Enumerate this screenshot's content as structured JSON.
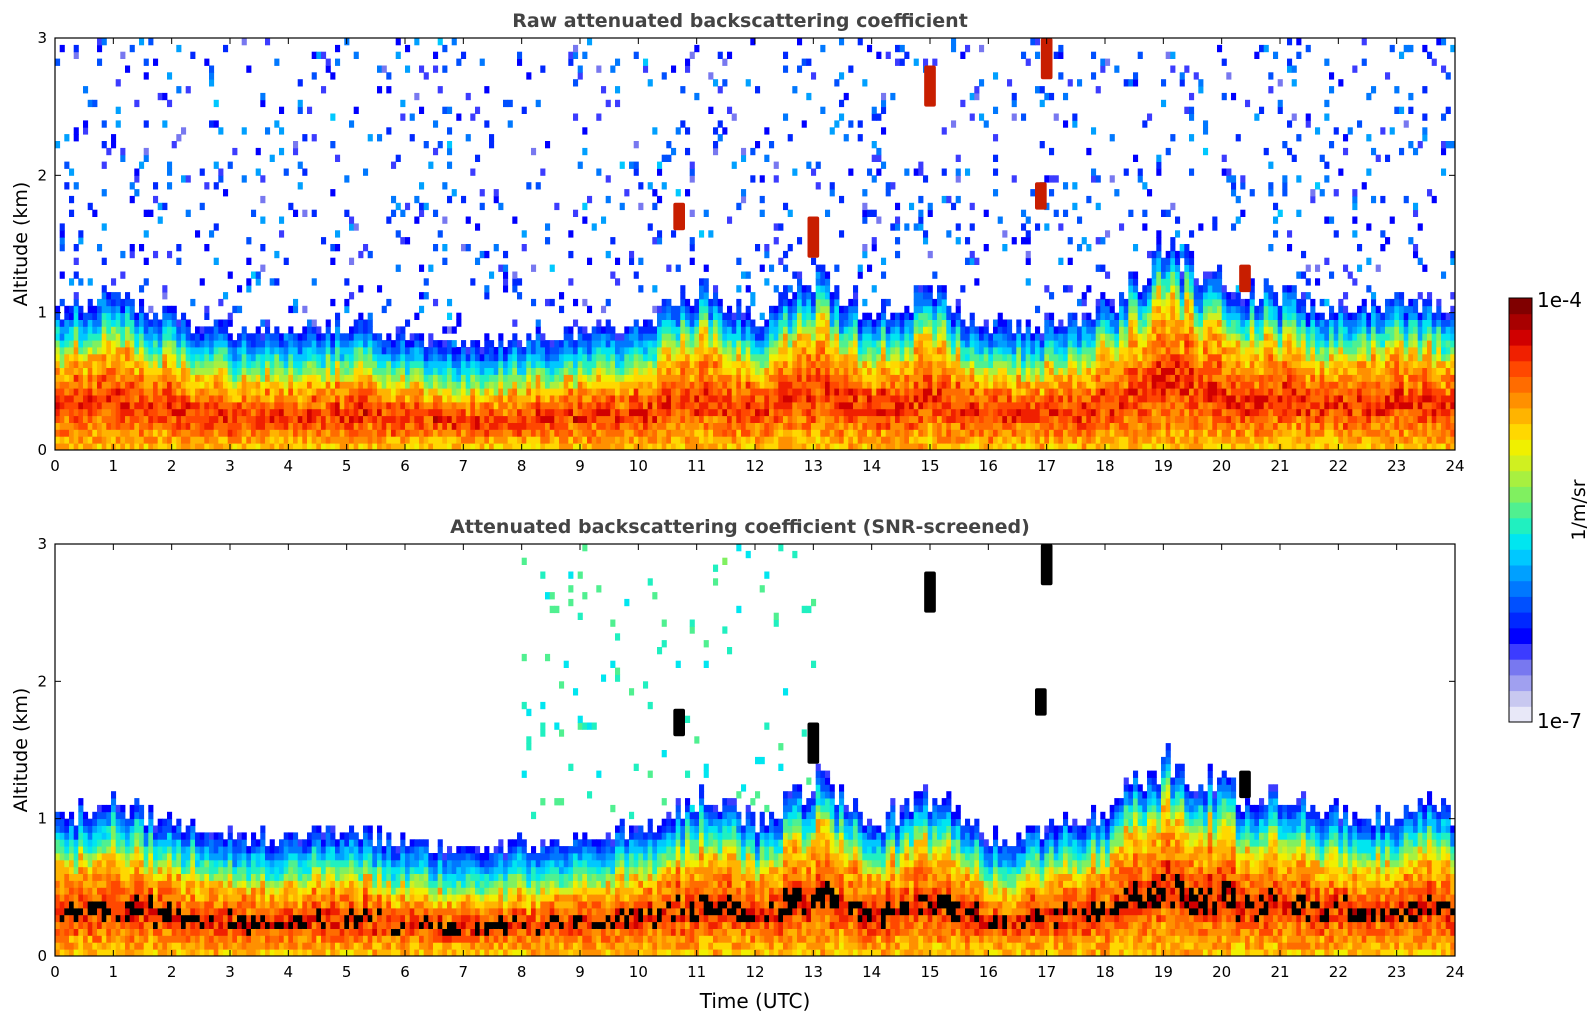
{
  "colorbar": {
    "max_label": "1e-4",
    "min_label": "1e-7",
    "unit_label": "1/m/sr",
    "colors": [
      "#e8e8f8",
      "#c8c8f0",
      "#a0a0f0",
      "#7878f0",
      "#3c3cff",
      "#0000ff",
      "#0028ff",
      "#0050ff",
      "#0078ff",
      "#00a0ff",
      "#00c8ff",
      "#00e6f0",
      "#20f0c0",
      "#50f090",
      "#80f060",
      "#a8f040",
      "#d0f020",
      "#f0f000",
      "#ffd800",
      "#ffb400",
      "#ff9000",
      "#ff6c00",
      "#ff4800",
      "#f02000",
      "#d00000",
      "#a80000",
      "#800000"
    ]
  },
  "chart_data": [
    {
      "type": "heatmap",
      "title": "Raw attenuated backscattering coefficient",
      "xlabel": "",
      "ylabel": "Altitude (km)",
      "xlim": [
        0,
        24
      ],
      "ylim": [
        0,
        3
      ],
      "xticks": [
        "0",
        "1",
        "2",
        "3",
        "4",
        "5",
        "6",
        "7",
        "8",
        "9",
        "10",
        "11",
        "12",
        "13",
        "14",
        "15",
        "16",
        "17",
        "18",
        "19",
        "20",
        "21",
        "22",
        "23",
        "24"
      ],
      "yticks": [
        "0",
        "1",
        "2",
        "3"
      ],
      "colorscale": "log",
      "clim": [
        1e-07,
        0.0001
      ],
      "screened": false,
      "boundary_layer_top_km": [
        {
          "t": 0,
          "z": 0.65
        },
        {
          "t": 1,
          "z": 0.75
        },
        {
          "t": 2,
          "z": 0.6
        },
        {
          "t": 3,
          "z": 0.5
        },
        {
          "t": 4,
          "z": 0.5
        },
        {
          "t": 5,
          "z": 0.55
        },
        {
          "t": 6,
          "z": 0.45
        },
        {
          "t": 7,
          "z": 0.4
        },
        {
          "t": 8,
          "z": 0.45
        },
        {
          "t": 9,
          "z": 0.5
        },
        {
          "t": 10,
          "z": 0.55
        },
        {
          "t": 11,
          "z": 0.8
        },
        {
          "t": 12,
          "z": 0.6
        },
        {
          "t": 13,
          "z": 0.9
        },
        {
          "t": 14,
          "z": 0.6
        },
        {
          "t": 15,
          "z": 0.8
        },
        {
          "t": 16,
          "z": 0.5
        },
        {
          "t": 17,
          "z": 0.55
        },
        {
          "t": 18,
          "z": 0.7
        },
        {
          "t": 19,
          "z": 1.05
        },
        {
          "t": 20,
          "z": 0.85
        },
        {
          "t": 21,
          "z": 0.75
        },
        {
          "t": 22,
          "z": 0.65
        },
        {
          "t": 23,
          "z": 0.7
        },
        {
          "t": 24,
          "z": 0.7
        }
      ],
      "cloud_features": [
        {
          "t_start": 16.9,
          "t_end": 17.1,
          "z_start": 2.7,
          "z_end": 3.0
        },
        {
          "t_start": 16.8,
          "t_end": 17.0,
          "z_start": 1.75,
          "z_end": 1.95
        },
        {
          "t_start": 14.9,
          "t_end": 15.1,
          "z_start": 2.5,
          "z_end": 2.8
        },
        {
          "t_start": 10.6,
          "t_end": 10.8,
          "z_start": 1.6,
          "z_end": 1.8
        },
        {
          "t_start": 12.9,
          "t_end": 13.1,
          "z_start": 1.4,
          "z_end": 1.7
        },
        {
          "t_start": 20.3,
          "t_end": 20.5,
          "z_start": 1.15,
          "z_end": 1.35
        }
      ]
    },
    {
      "type": "heatmap",
      "title": "Attenuated backscattering coefficient (SNR-screened)",
      "xlabel": "Time (UTC)",
      "ylabel": "Altitude (km)",
      "xlim": [
        0,
        24
      ],
      "ylim": [
        0,
        3
      ],
      "xticks": [
        "0",
        "1",
        "2",
        "3",
        "4",
        "5",
        "6",
        "7",
        "8",
        "9",
        "10",
        "11",
        "12",
        "13",
        "14",
        "15",
        "16",
        "17",
        "18",
        "19",
        "20",
        "21",
        "22",
        "23",
        "24"
      ],
      "yticks": [
        "0",
        "1",
        "2",
        "3"
      ],
      "colorscale": "log",
      "clim": [
        1e-07,
        0.0001
      ],
      "screened": true,
      "boundary_layer_top_km": [
        {
          "t": 0,
          "z": 0.65
        },
        {
          "t": 1,
          "z": 0.75
        },
        {
          "t": 2,
          "z": 0.6
        },
        {
          "t": 3,
          "z": 0.5
        },
        {
          "t": 4,
          "z": 0.5
        },
        {
          "t": 5,
          "z": 0.55
        },
        {
          "t": 6,
          "z": 0.45
        },
        {
          "t": 7,
          "z": 0.4
        },
        {
          "t": 8,
          "z": 0.45
        },
        {
          "t": 9,
          "z": 0.5
        },
        {
          "t": 10,
          "z": 0.55
        },
        {
          "t": 11,
          "z": 0.8
        },
        {
          "t": 12,
          "z": 0.6
        },
        {
          "t": 13,
          "z": 0.9
        },
        {
          "t": 14,
          "z": 0.6
        },
        {
          "t": 15,
          "z": 0.8
        },
        {
          "t": 16,
          "z": 0.5
        },
        {
          "t": 17,
          "z": 0.55
        },
        {
          "t": 18,
          "z": 0.7
        },
        {
          "t": 19,
          "z": 1.05
        },
        {
          "t": 20,
          "z": 0.85
        },
        {
          "t": 21,
          "z": 0.75
        },
        {
          "t": 22,
          "z": 0.65
        },
        {
          "t": 23,
          "z": 0.7
        },
        {
          "t": 24,
          "z": 0.7
        }
      ],
      "cloud_features": [
        {
          "t_start": 16.9,
          "t_end": 17.1,
          "z_start": 2.7,
          "z_end": 3.0
        },
        {
          "t_start": 16.8,
          "t_end": 17.0,
          "z_start": 1.75,
          "z_end": 1.95
        },
        {
          "t_start": 14.9,
          "t_end": 15.1,
          "z_start": 2.5,
          "z_end": 2.8
        },
        {
          "t_start": 10.6,
          "t_end": 10.8,
          "z_start": 1.6,
          "z_end": 1.8
        },
        {
          "t_start": 12.9,
          "t_end": 13.1,
          "z_start": 1.4,
          "z_end": 1.7
        },
        {
          "t_start": 20.3,
          "t_end": 20.5,
          "z_start": 1.15,
          "z_end": 1.35
        }
      ]
    }
  ]
}
